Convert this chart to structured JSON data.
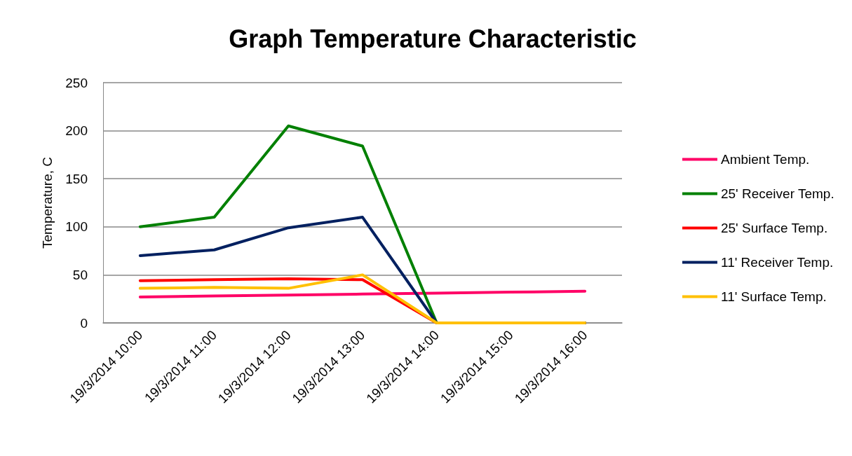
{
  "chart_data": {
    "type": "line",
    "title": "Graph Temperature Characteristic",
    "ylabel": "Temperature, C",
    "categories": [
      "19/3/2014 10:00",
      "19/3/2014 11:00",
      "19/3/2014 12:00",
      "19/3/2014 13:00",
      "19/3/2014 14:00",
      "19/3/2014 15:00",
      "19/3/2014 16:00"
    ],
    "series": [
      {
        "name": "Ambient Temp.",
        "color": "#ff0066",
        "values": [
          27,
          28,
          29,
          30,
          31,
          32,
          33
        ]
      },
      {
        "name": "25' Receiver Temp.",
        "color": "#008000",
        "values": [
          100,
          110,
          205,
          184,
          0,
          0,
          0
        ]
      },
      {
        "name": "25' Surface Temp.",
        "color": "#ff0000",
        "values": [
          44,
          45,
          46,
          45,
          0,
          0,
          0
        ]
      },
      {
        "name": "11' Receiver Temp.",
        "color": "#002060",
        "values": [
          70,
          76,
          99,
          110,
          0,
          0,
          0
        ]
      },
      {
        "name": "11' Surface Temp.",
        "color": "#ffc000",
        "values": [
          36,
          37,
          36,
          50,
          0,
          0,
          0
        ]
      }
    ],
    "ylim": [
      0,
      250
    ],
    "yticks": [
      0,
      50,
      100,
      150,
      200,
      250
    ],
    "grid": "y",
    "legend": "right",
    "marker": "none",
    "line_style": "solid"
  }
}
